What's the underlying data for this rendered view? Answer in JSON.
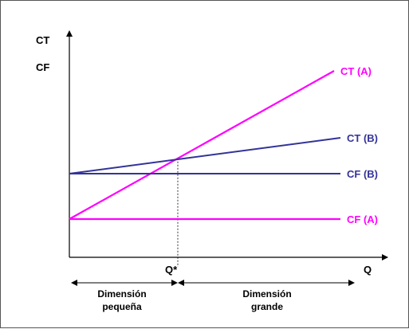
{
  "chart_data": {
    "type": "line",
    "title": "",
    "y_axis_labels": [
      "CT",
      "CF"
    ],
    "x_axis_label": "Q",
    "x_marker_label": "Q*",
    "colors": {
      "A": "#ff00ff",
      "B": "#333399",
      "axis": "#000000"
    },
    "xlim": [
      0,
      10
    ],
    "ylim": [
      0,
      10
    ],
    "q_star": 3.4,
    "series": [
      {
        "name": "CT (A)",
        "color": "#ff00ff",
        "points": [
          [
            0,
            1.6
          ],
          [
            8.3,
            7.8
          ]
        ]
      },
      {
        "name": "CT (B)",
        "color": "#333399",
        "points": [
          [
            0,
            3.5
          ],
          [
            8.5,
            5.0
          ]
        ]
      },
      {
        "name": "CF (B)",
        "color": "#333399",
        "points": [
          [
            0,
            3.5
          ],
          [
            8.5,
            3.5
          ]
        ]
      },
      {
        "name": "CF (A)",
        "color": "#ff00ff",
        "points": [
          [
            0,
            1.6
          ],
          [
            8.5,
            1.6
          ]
        ]
      }
    ],
    "regions": [
      {
        "line1": "Dimensión",
        "line2": "pequeña"
      },
      {
        "line1": "Dimensión",
        "line2": "grande"
      }
    ]
  }
}
